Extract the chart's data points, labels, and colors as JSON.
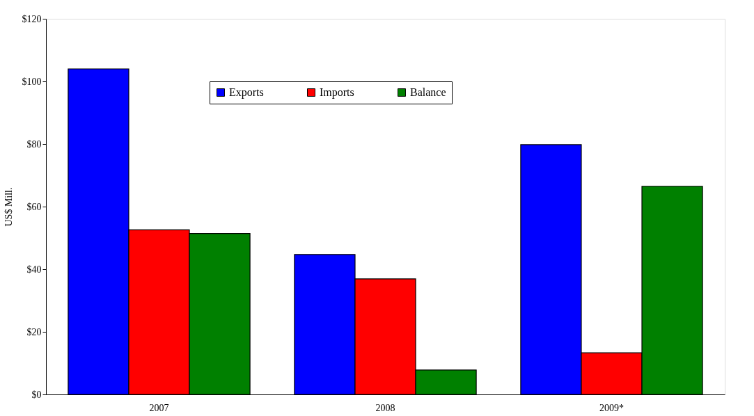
{
  "chart_data": {
    "type": "bar",
    "ylabel": "US$ Mill.",
    "categories": [
      "2007",
      "2008",
      "2009*"
    ],
    "series": [
      {
        "name": "Exports",
        "color": "#0000ff",
        "values": [
          104,
          44.7,
          79.8
        ]
      },
      {
        "name": "Imports",
        "color": "#ff0000",
        "values": [
          52.6,
          36.9,
          13.3
        ]
      },
      {
        "name": "Balance",
        "color": "#008000",
        "values": [
          51.4,
          7.8,
          66.5
        ]
      }
    ],
    "ylim": [
      0,
      120
    ],
    "yticks": [
      {
        "value": 0,
        "label": "$0"
      },
      {
        "value": 20,
        "label": "$20"
      },
      {
        "value": 40,
        "label": "$40"
      },
      {
        "value": 60,
        "label": "$60"
      },
      {
        "value": 80,
        "label": "$80"
      },
      {
        "value": 100,
        "label": "$100"
      },
      {
        "value": 120,
        "label": "$120"
      }
    ],
    "legend": "top",
    "grid": false
  }
}
